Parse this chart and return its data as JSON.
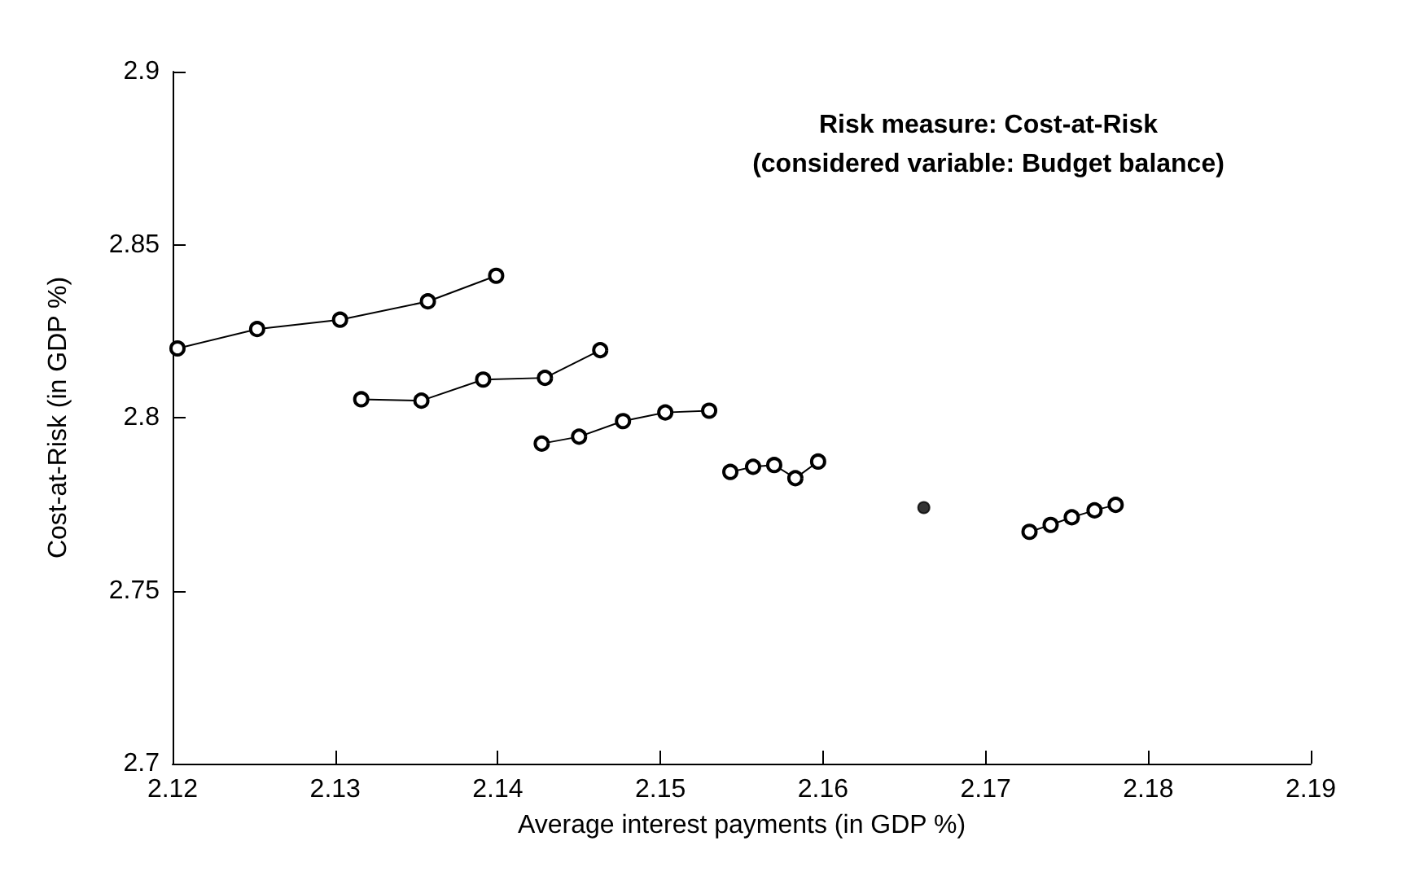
{
  "chart_data": {
    "type": "line",
    "title": "Risk measure: Cost-at-Risk\n(considered variable: Budget balance)",
    "xlabel": "Average interest payments (in GDP %)",
    "ylabel": "Cost-at-Risk (in GDP %)",
    "xlim": [
      2.12,
      2.19
    ],
    "xticks": [
      2.12,
      2.13,
      2.14,
      2.15,
      2.16,
      2.17,
      2.18,
      2.19
    ],
    "ylim": [
      2.7,
      2.9
    ],
    "yticks": [
      2.7,
      2.75,
      2.8,
      2.85,
      2.9
    ],
    "grid": false,
    "marker": "circle",
    "line_style": "solid",
    "series": [
      {
        "color": "#000000",
        "x": [
          2.1203,
          2.1252,
          2.1303,
          2.1357,
          2.1399
        ],
        "values": [
          2.82,
          2.8256,
          2.8283,
          2.8336,
          2.841
        ]
      },
      {
        "color": "#000000",
        "x": [
          2.1316,
          2.1353,
          2.1391,
          2.1429,
          2.1463
        ],
        "values": [
          2.8053,
          2.8049,
          2.811,
          2.8115,
          2.8195
        ]
      },
      {
        "color": "#000000",
        "x": [
          2.1427,
          2.145,
          2.1477,
          2.1503,
          2.153
        ],
        "values": [
          2.7925,
          2.7945,
          2.799,
          2.8015,
          2.802
        ]
      },
      {
        "color": "#000000",
        "x": [
          2.1543,
          2.1557,
          2.157,
          2.1583,
          2.1597
        ],
        "values": [
          2.7843,
          2.7858,
          2.7863,
          2.7825,
          2.7873
        ]
      },
      {
        "type": "scatter",
        "color": "#000000",
        "x": [
          2.1662
        ],
        "values": [
          2.774
        ]
      },
      {
        "color": "#000000",
        "x": [
          2.1727,
          2.174,
          2.1753,
          2.1767,
          2.178
        ],
        "values": [
          2.767,
          2.769,
          2.7712,
          2.7732,
          2.7748
        ]
      }
    ]
  }
}
